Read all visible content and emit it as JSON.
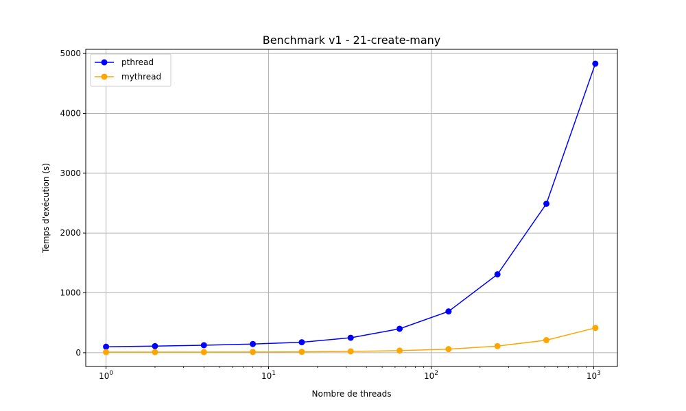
{
  "chart_data": {
    "type": "line",
    "title": "Benchmark v1 - 21-create-many",
    "xlabel": "Nombre de threads",
    "ylabel": "Temps d'exécution (s)",
    "x_scale": "log",
    "x": [
      1,
      2,
      4,
      8,
      16,
      32,
      64,
      128,
      256,
      512,
      1024
    ],
    "xlim": [
      0.75,
      1400
    ],
    "ylim": [
      -230,
      5070
    ],
    "x_ticks": [
      {
        "value": 1,
        "base": "10",
        "exp": "0"
      },
      {
        "value": 10,
        "base": "10",
        "exp": "1"
      },
      {
        "value": 100,
        "base": "10",
        "exp": "2"
      },
      {
        "value": 1000,
        "base": "10",
        "exp": "3"
      }
    ],
    "y_ticks": [
      0,
      1000,
      2000,
      3000,
      4000,
      5000
    ],
    "grid": true,
    "legend_position": "top-left",
    "series": [
      {
        "name": "pthread",
        "color": "#0000ff",
        "values": [
          100,
          110,
          125,
          145,
          175,
          250,
          400,
          690,
          1310,
          2490,
          4830
        ]
      },
      {
        "name": "mythread",
        "color": "#ffa500",
        "values": [
          10,
          10,
          10,
          12,
          15,
          22,
          35,
          60,
          110,
          210,
          415
        ]
      }
    ]
  }
}
